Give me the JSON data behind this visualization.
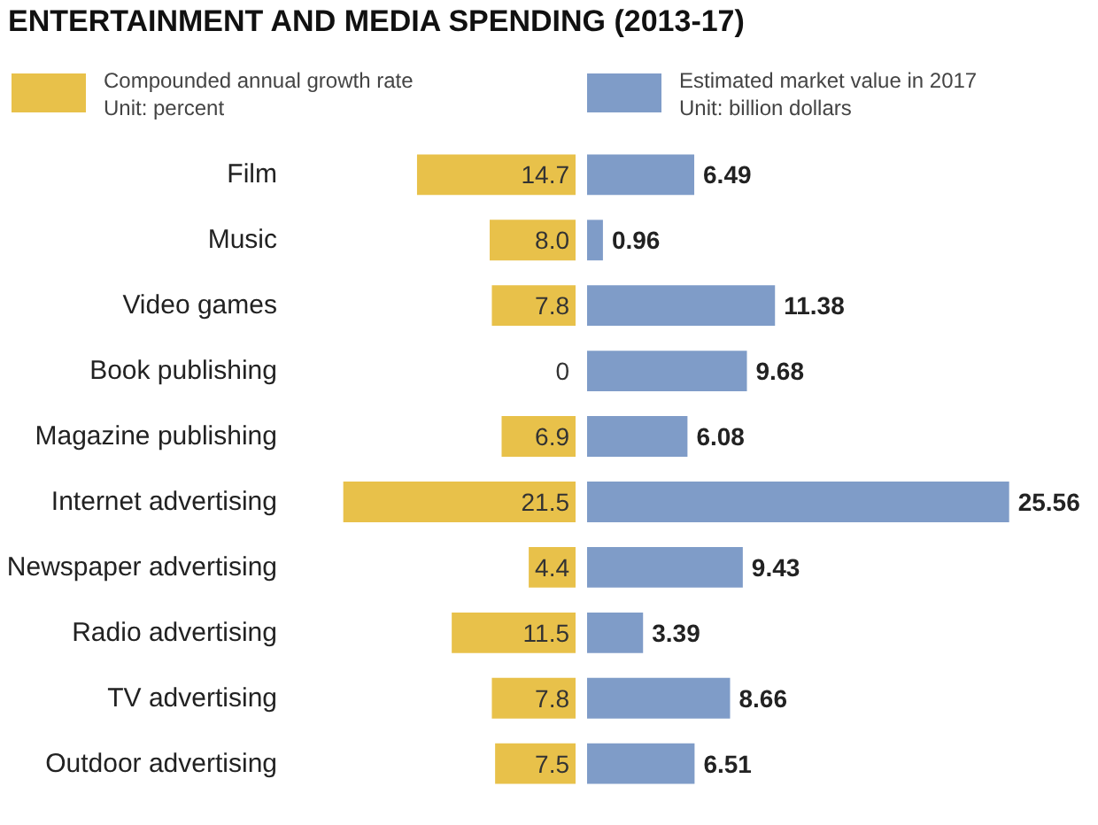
{
  "chart_data": [
    {
      "type": "bar",
      "orientation": "horizontal",
      "title": "ENTERTAINMENT AND MEDIA SPENDING (2013-17)",
      "categories": [
        "Film",
        "Music",
        "Video games",
        "Book publishing",
        "Magazine publishing",
        "Internet advertising",
        "Newspaper advertising",
        "Radio advertising",
        "TV advertising",
        "Outdoor advertising"
      ],
      "series": [
        {
          "name": "Compounded annual growth rate\nUnit: percent",
          "color": "#e8c14a",
          "values": [
            14.7,
            8.0,
            7.8,
            0,
            6.9,
            21.5,
            4.4,
            11.5,
            7.8,
            7.5
          ],
          "value_labels": [
            "14.7",
            "8.0",
            "7.8",
            "0",
            "6.9",
            "21.5",
            "4.4",
            "11.5",
            "7.8",
            "7.5"
          ]
        }
      ],
      "tick_labels": "y",
      "legend": "top left"
    },
    {
      "type": "bar",
      "orientation": "horizontal",
      "categories": [
        null,
        null,
        null,
        null,
        null,
        null,
        null,
        null,
        null,
        null
      ],
      "series": [
        {
          "name": "Estimated market value in 2017\nUnit: billion dollars",
          "color": "#7f9cc8",
          "values": [
            6.49,
            0.96,
            11.38,
            9.68,
            6.08,
            25.56,
            9.43,
            3.39,
            8.66,
            6.51
          ]
        }
      ],
      "data_labels": true,
      "legend": "top left"
    }
  ]
}
